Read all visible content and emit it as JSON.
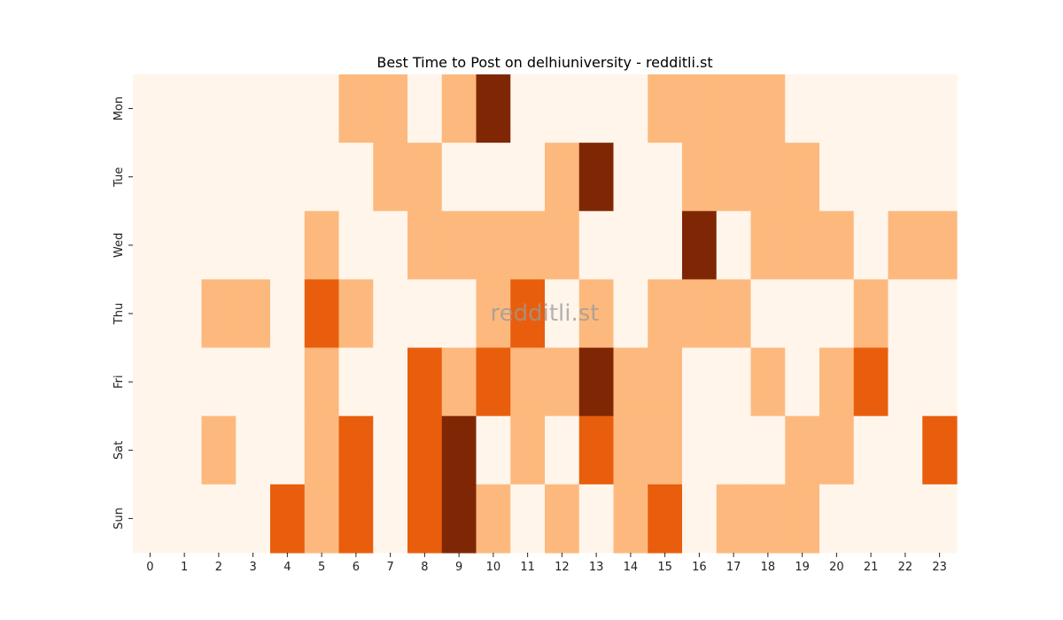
{
  "chart_data": {
    "type": "heatmap",
    "title": "Best Time to Post on delhiuniversity - redditli.st",
    "watermark": "redditli.st",
    "x": [
      "0",
      "1",
      "2",
      "3",
      "4",
      "5",
      "6",
      "7",
      "8",
      "9",
      "10",
      "11",
      "12",
      "13",
      "14",
      "15",
      "16",
      "17",
      "18",
      "19",
      "20",
      "21",
      "22",
      "23"
    ],
    "y": [
      "Mon",
      "Tue",
      "Wed",
      "Thu",
      "Fri",
      "Sat",
      "Sun"
    ],
    "values": [
      [
        0,
        0,
        0,
        0,
        0,
        0,
        1,
        1,
        0,
        1,
        3,
        0,
        0,
        0,
        0,
        1,
        1,
        1,
        1,
        0,
        0,
        0,
        0,
        0
      ],
      [
        0,
        0,
        0,
        0,
        0,
        0,
        0,
        1,
        1,
        0,
        0,
        0,
        1,
        3,
        0,
        0,
        1,
        1,
        1,
        1,
        0,
        0,
        0,
        0
      ],
      [
        0,
        0,
        0,
        0,
        0,
        1,
        0,
        0,
        1,
        1,
        1,
        1,
        1,
        0,
        0,
        0,
        3,
        0,
        1,
        1,
        1,
        0,
        1,
        1
      ],
      [
        0,
        0,
        1,
        1,
        0,
        2,
        1,
        0,
        0,
        0,
        1,
        2,
        0,
        1,
        0,
        1,
        1,
        1,
        0,
        0,
        0,
        1,
        0,
        0
      ],
      [
        0,
        0,
        0,
        0,
        0,
        1,
        0,
        0,
        2,
        1,
        2,
        1,
        1,
        3,
        1,
        1,
        0,
        0,
        1,
        0,
        1,
        2,
        0,
        0
      ],
      [
        0,
        0,
        1,
        0,
        0,
        1,
        2,
        0,
        2,
        3,
        0,
        1,
        0,
        2,
        1,
        1,
        0,
        0,
        0,
        1,
        1,
        0,
        0,
        2
      ],
      [
        0,
        0,
        0,
        0,
        2,
        1,
        2,
        0,
        2,
        3,
        1,
        0,
        1,
        0,
        1,
        2,
        0,
        1,
        1,
        1,
        0,
        0,
        0,
        0
      ]
    ],
    "colorscale": [
      "#fff5eb",
      "#fdb97d",
      "#e95e0d",
      "#7f2704"
    ],
    "grid": false,
    "legend": "none"
  }
}
